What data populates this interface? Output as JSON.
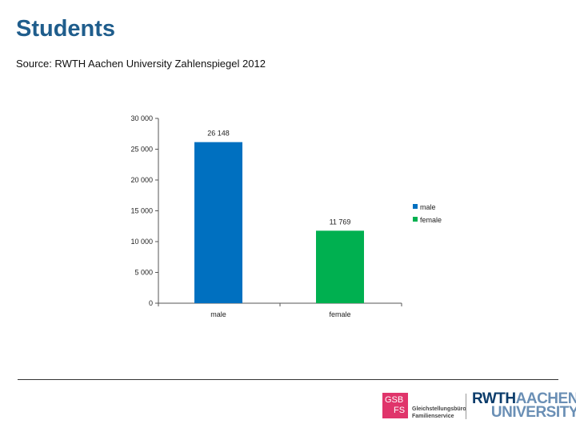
{
  "header": {
    "title": "Students",
    "subtitle": "Source: RWTH Aachen University Zahlenspiegel 2012"
  },
  "chart_data": {
    "type": "bar",
    "categories": [
      "male",
      "female"
    ],
    "values": [
      26148,
      11769
    ],
    "data_labels": [
      "26 148",
      "11 769"
    ],
    "colors": [
      "#0070c0",
      "#00b050"
    ],
    "ylim": [
      0,
      30000
    ],
    "yticks": [
      {
        "value": 0,
        "label": "0"
      },
      {
        "value": 5000,
        "label": "5 000"
      },
      {
        "value": 10000,
        "label": "10 000"
      },
      {
        "value": 15000,
        "label": "15 000"
      },
      {
        "value": 20000,
        "label": "20 000"
      },
      {
        "value": 25000,
        "label": "25 000"
      },
      {
        "value": 30000,
        "label": "30 000"
      }
    ],
    "grid": false,
    "legend": {
      "position": "right",
      "entries": [
        {
          "label": "male",
          "color": "#0070c0"
        },
        {
          "label": "female",
          "color": "#00b050"
        }
      ]
    }
  },
  "footer": {
    "gsb_line1": "GSB",
    "gsb_line2": "FS",
    "gsb_caption1": "Gleichstellungsbüro",
    "gsb_caption2": "Familienservice",
    "rwth_part1": "RWTH",
    "rwth_part2": "AACHEN",
    "rwth_part3": "UNIVERSITY"
  }
}
